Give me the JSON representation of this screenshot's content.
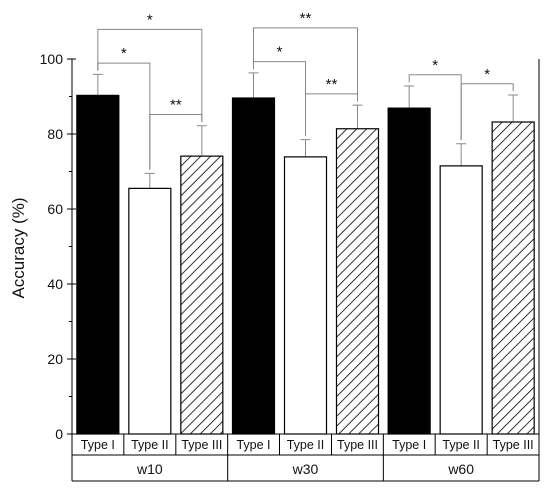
{
  "chart_data": {
    "type": "bar",
    "ylabel": "Accuracy (%)",
    "ylim": [
      0,
      100
    ],
    "yticks": [
      "0",
      "20",
      "40",
      "60",
      "80",
      "100"
    ],
    "groups": [
      "w10",
      "w30",
      "w60"
    ],
    "categories": [
      "Type I",
      "Type II",
      "Type III"
    ],
    "series": [
      {
        "values": [
          90.3,
          65.5,
          74.1
        ],
        "errors": [
          5.6,
          4.0,
          8.1
        ],
        "fill": "solid-black"
      },
      {
        "values": [
          89.6,
          73.9,
          81.4
        ],
        "errors": [
          6.7,
          4.6,
          6.3
        ],
        "fill": "white"
      },
      {
        "values": [
          86.9,
          71.5,
          83.2
        ],
        "errors": [
          5.9,
          5.9,
          7.2
        ],
        "fill": "diagonal-hatch"
      }
    ],
    "significance": [
      {
        "group": "w10",
        "from": "Type I",
        "to": "Type II",
        "label": "*"
      },
      {
        "group": "w10",
        "from": "Type I",
        "to": "Type III",
        "label": "*"
      },
      {
        "group": "w10",
        "from": "Type II",
        "to": "Type III",
        "label": "**"
      },
      {
        "group": "w30",
        "from": "Type I",
        "to": "Type II",
        "label": "*"
      },
      {
        "group": "w30",
        "from": "Type I",
        "to": "Type III",
        "label": "**"
      },
      {
        "group": "w30",
        "from": "Type II",
        "to": "Type III",
        "label": "**"
      },
      {
        "group": "w60",
        "from": "Type I",
        "to": "Type II",
        "label": "*"
      },
      {
        "group": "w60",
        "from": "Type II",
        "to": "Type III",
        "label": "*"
      }
    ],
    "colors": {
      "bar_dark": "#000000",
      "bar_light": "#ffffff",
      "stroke": "#000000",
      "bracket": "#888888"
    },
    "grid": false,
    "legend": "none"
  }
}
